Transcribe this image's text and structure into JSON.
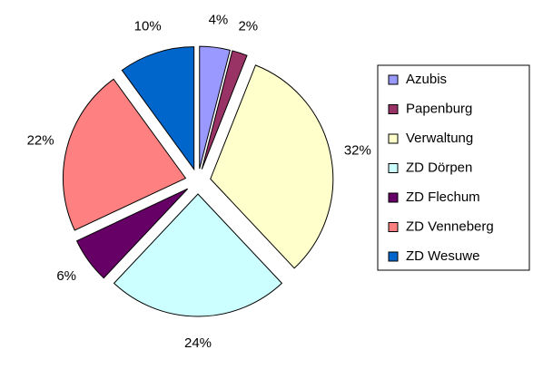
{
  "chart_data": {
    "type": "pie",
    "categories": [
      "Azubis",
      "Papenburg",
      "Verwaltung",
      "ZD Dörpen",
      "ZD Flechum",
      "ZD Venneberg",
      "ZD Wesuwe"
    ],
    "values": [
      4,
      2,
      32,
      24,
      6,
      22,
      10
    ],
    "value_labels": [
      "4%",
      "2%",
      "32%",
      "24%",
      "6%",
      "22%",
      "10%"
    ],
    "colors": [
      "#9999ff",
      "#993366",
      "#ffffcc",
      "#ccffff",
      "#660066",
      "#ff8080",
      "#0066cc"
    ],
    "legend": "right"
  }
}
